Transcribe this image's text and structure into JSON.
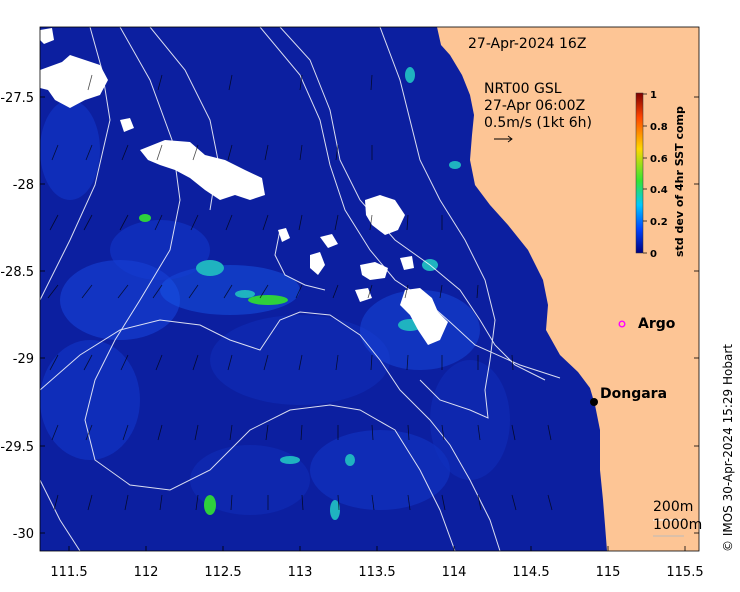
{
  "map": {
    "timestamp": "27-Apr-2024 16Z",
    "product": "NRT00 GSL",
    "product_time": "27-Apr 06:00Z",
    "current_scale": "0.5m/s (1kt 6h)",
    "lon_ticks": [
      "111.5",
      "112",
      "112.5",
      "113",
      "113.5",
      "114",
      "114.5",
      "115",
      "115.5"
    ],
    "lat_ticks": [
      "-27.5",
      "-28",
      "-28.5",
      "-29",
      "-29.5",
      "-30"
    ],
    "places": [
      {
        "name": "Argo",
        "marker": "magenta-open-circle"
      },
      {
        "name": "Dongara",
        "marker": "black-dot"
      }
    ],
    "isobaths": [
      "200m",
      "1000m"
    ],
    "credit": "© IMOS 30-Apr-2024 15:29 Hobart",
    "colors": {
      "land": "#fdc595",
      "deep_water": "#0c1fa0",
      "no_data": "#ffffff"
    }
  },
  "colorbar": {
    "label": "std dev of 4hr SST comp",
    "ticks": [
      "1",
      "0.8",
      "0.6",
      "0.4",
      "0.2",
      "0"
    ],
    "colormap": [
      "#00007f",
      "#0044ff",
      "#00c8ff",
      "#33e533",
      "#ffd700",
      "#ff4500",
      "#7f0000"
    ]
  }
}
